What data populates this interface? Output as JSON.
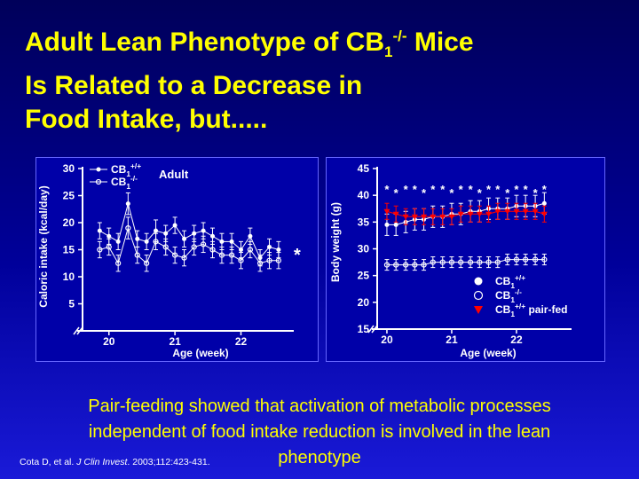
{
  "slide": {
    "title_line1_pre": "Adult Lean Phenotype of CB",
    "title_line1_sub": "1",
    "title_line1_sup": "-/-",
    "title_line1_post": " Mice",
    "title_line2": "Is Related to a Decrease in",
    "title_line3": "Food Intake, but.....",
    "caption": "Pair-feeding showed that activation of metabolic processes independent of food intake reduction is involved in the lean phenotype",
    "citation_pre": "Cota D, et al. ",
    "citation_journal": "J Clin Invest",
    "citation_post": ". 2003;112:423-431.",
    "colors": {
      "background": "#00009a",
      "title": "#ffff00",
      "panel": "#0000a8",
      "pair_fed": "#ff0000",
      "axis": "#ffffff"
    }
  },
  "chart_data": [
    {
      "type": "line",
      "ylabel": "Caloric intake (kcal/day)",
      "xlabel": "Age (week)",
      "annotation": "Adult",
      "significance": "*",
      "ylim": [
        0,
        30
      ],
      "xlim": [
        19.6,
        22.8
      ],
      "x_ticks": [
        "20",
        "21",
        "22"
      ],
      "y_ticks": [
        "5",
        "10",
        "15",
        "20",
        "25",
        "30"
      ],
      "legend": [
        {
          "base": "CB",
          "sub": "1",
          "sup": "+/+",
          "marker": "filled-circle"
        },
        {
          "base": "CB",
          "sub": "1",
          "sup": "-/-",
          "marker": "open-circle"
        }
      ],
      "x": [
        19.86,
        20.0,
        20.14,
        20.29,
        20.43,
        20.57,
        20.71,
        20.86,
        21.0,
        21.14,
        21.29,
        21.43,
        21.57,
        21.71,
        21.86,
        22.0,
        22.14,
        22.29,
        22.43,
        22.57
      ],
      "series": [
        {
          "name": "CB1+/+",
          "marker": "filled-circle",
          "color": "#ffffff",
          "values": [
            18.5,
            17.5,
            16.5,
            23.5,
            17.0,
            16.5,
            18.5,
            18.0,
            19.5,
            17.0,
            18.0,
            18.5,
            17.5,
            16.5,
            16.5,
            15.0,
            17.5,
            13.5,
            15.5,
            15.0
          ],
          "error": [
            1.5,
            1.5,
            1.5,
            2.0,
            1.5,
            1.5,
            2.0,
            1.5,
            1.5,
            1.5,
            1.5,
            1.5,
            1.5,
            1.5,
            1.5,
            1.5,
            1.5,
            1.5,
            1.5,
            1.5
          ]
        },
        {
          "name": "CB1-/-",
          "marker": "open-circle",
          "color": "#ffffff",
          "values": [
            15.0,
            15.5,
            12.5,
            19.0,
            14.0,
            12.5,
            16.5,
            15.5,
            14.0,
            13.5,
            15.5,
            16.0,
            15.0,
            14.0,
            14.0,
            13.0,
            15.0,
            12.5,
            13.0,
            13.0
          ],
          "error": [
            1.5,
            1.5,
            1.5,
            2.0,
            1.5,
            1.5,
            1.5,
            1.5,
            1.5,
            1.5,
            1.5,
            1.5,
            1.5,
            1.5,
            1.5,
            1.5,
            1.5,
            1.5,
            1.5,
            1.5
          ]
        }
      ]
    },
    {
      "type": "line",
      "ylabel": "Body weight (g)",
      "xlabel": "Age (week)",
      "ylim": [
        15,
        45
      ],
      "xlim": [
        19.85,
        22.85
      ],
      "x_ticks": [
        "20",
        "21",
        "22"
      ],
      "y_ticks": [
        "15",
        "20",
        "25",
        "30",
        "35",
        "40",
        "45"
      ],
      "legend": [
        {
          "base": "CB",
          "sub": "1",
          "sup": "+/+",
          "post": "",
          "marker": "filled-circle",
          "color": "#ffffff"
        },
        {
          "base": "CB",
          "sub": "1",
          "sup": "-/-",
          "post": "",
          "marker": "open-circle",
          "color": "#ffffff"
        },
        {
          "base": "CB",
          "sub": "1",
          "sup": "+/+",
          "post": " pair-fed",
          "marker": "filled-triangle",
          "color": "#ff0000"
        }
      ],
      "x": [
        20.0,
        20.14,
        20.29,
        20.43,
        20.57,
        20.71,
        20.86,
        21.0,
        21.14,
        21.29,
        21.43,
        21.57,
        21.71,
        21.86,
        22.0,
        22.14,
        22.29,
        22.43
      ],
      "significance_labels": [
        "*",
        "*",
        "*",
        "*",
        "*",
        "*",
        "*",
        "*",
        "*",
        "*",
        "*",
        "*",
        "*",
        "*",
        "*",
        "*",
        "*",
        "*"
      ],
      "series": [
        {
          "name": "CB1+/+",
          "marker": "filled-circle",
          "color": "#ffffff",
          "values": [
            34.5,
            34.5,
            35.0,
            35.5,
            35.5,
            36.0,
            36.0,
            36.5,
            36.5,
            37.0,
            37.0,
            37.5,
            37.5,
            37.5,
            38.0,
            38.0,
            38.0,
            38.5
          ],
          "error": [
            2.0,
            2.0,
            2.0,
            2.0,
            2.0,
            2.0,
            2.0,
            2.0,
            2.0,
            2.0,
            2.0,
            2.0,
            2.0,
            2.0,
            2.0,
            2.0,
            2.0,
            2.0
          ]
        },
        {
          "name": "CB1-/-",
          "marker": "open-circle",
          "color": "#ffffff",
          "values": [
            27.0,
            27.0,
            27.0,
            27.0,
            27.0,
            27.5,
            27.5,
            27.5,
            27.5,
            27.5,
            27.5,
            27.5,
            27.5,
            28.0,
            28.0,
            28.0,
            28.0,
            28.0
          ],
          "error": [
            1.0,
            1.0,
            1.0,
            1.0,
            1.0,
            1.0,
            1.0,
            1.0,
            1.0,
            1.0,
            1.0,
            1.0,
            1.0,
            1.0,
            1.0,
            1.0,
            1.0,
            1.0
          ]
        },
        {
          "name": "CB1+/+ pair-fed",
          "marker": "filled-triangle",
          "color": "#ff0000",
          "values": [
            37.0,
            36.5,
            36.0,
            36.0,
            36.0,
            36.0,
            36.0,
            36.0,
            36.5,
            36.5,
            36.5,
            36.5,
            37.0,
            37.0,
            37.0,
            37.0,
            37.0,
            36.5
          ],
          "error": [
            1.5,
            1.5,
            1.5,
            1.5,
            1.5,
            1.5,
            1.5,
            1.5,
            1.5,
            1.5,
            1.5,
            1.5,
            1.5,
            1.5,
            1.5,
            1.5,
            1.5,
            1.5
          ]
        }
      ]
    }
  ]
}
